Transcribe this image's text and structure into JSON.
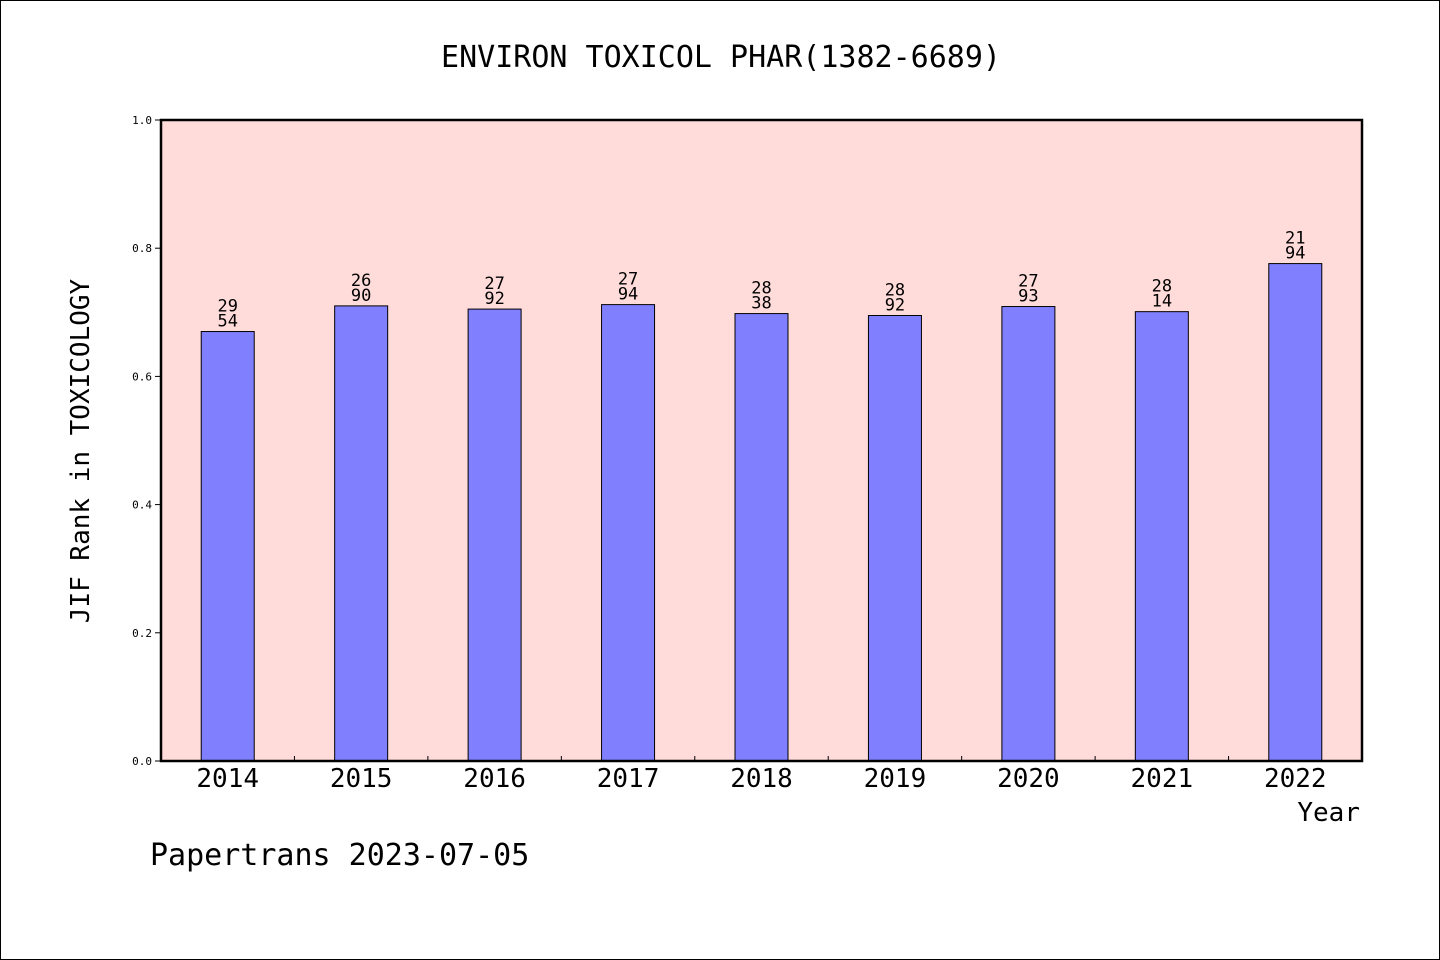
{
  "chart_data": {
    "type": "bar",
    "title": "ENVIRON TOXICOL PHAR(1382-6689)",
    "xlabel": "Year",
    "ylabel": "JIF Rank in TOXICOLOGY",
    "ylim": [
      0,
      1.0
    ],
    "yticks": [
      "0.0",
      "0.2",
      "0.4",
      "0.6",
      "0.8",
      "1.0"
    ],
    "categories": [
      "2014",
      "2015",
      "2016",
      "2017",
      "2018",
      "2019",
      "2020",
      "2021",
      "2022"
    ],
    "values": [
      0.67,
      0.71,
      0.705,
      0.712,
      0.698,
      0.695,
      0.709,
      0.701,
      0.776
    ],
    "labels": [
      [
        "29",
        "54"
      ],
      [
        "26",
        "90"
      ],
      [
        "27",
        "92"
      ],
      [
        "27",
        "94"
      ],
      [
        "28",
        "38"
      ],
      [
        "28",
        "92"
      ],
      [
        "27",
        "93"
      ],
      [
        "28",
        "14"
      ],
      [
        "21",
        "94"
      ]
    ],
    "plot_background": "#ffdcda",
    "bar_color": "#8080ff",
    "grid": false,
    "legend": "none"
  },
  "footer": "Papertrans 2023-07-05"
}
